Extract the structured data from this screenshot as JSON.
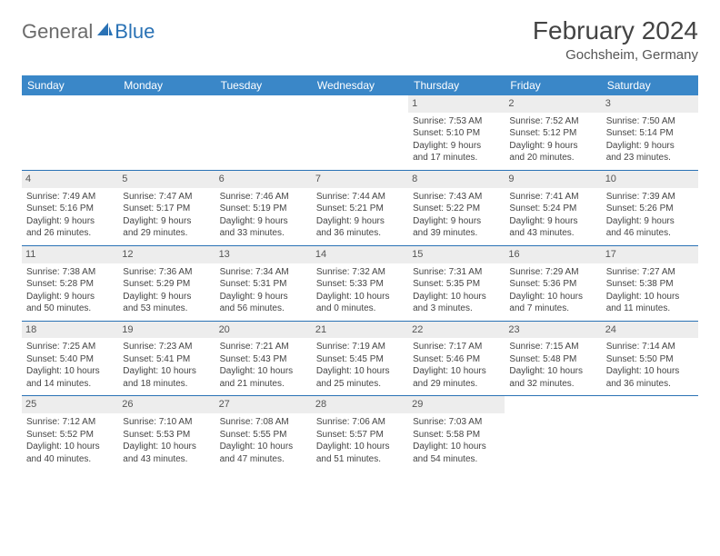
{
  "brand": {
    "part1": "General",
    "part2": "Blue"
  },
  "title": "February 2024",
  "location": "Gochsheim, Germany",
  "colors": {
    "header_bg": "#3a87c8",
    "rule": "#2a72b5",
    "daynum_bg": "#ededed",
    "text": "#444444",
    "brand_gray": "#6b6b6b",
    "brand_blue": "#2a72b5"
  },
  "days_of_week": [
    "Sunday",
    "Monday",
    "Tuesday",
    "Wednesday",
    "Thursday",
    "Friday",
    "Saturday"
  ],
  "weeks": [
    [
      null,
      null,
      null,
      null,
      {
        "n": "1",
        "sr": "7:53 AM",
        "ss": "5:10 PM",
        "dl": "9 hours and 17 minutes."
      },
      {
        "n": "2",
        "sr": "7:52 AM",
        "ss": "5:12 PM",
        "dl": "9 hours and 20 minutes."
      },
      {
        "n": "3",
        "sr": "7:50 AM",
        "ss": "5:14 PM",
        "dl": "9 hours and 23 minutes."
      }
    ],
    [
      {
        "n": "4",
        "sr": "7:49 AM",
        "ss": "5:16 PM",
        "dl": "9 hours and 26 minutes."
      },
      {
        "n": "5",
        "sr": "7:47 AM",
        "ss": "5:17 PM",
        "dl": "9 hours and 29 minutes."
      },
      {
        "n": "6",
        "sr": "7:46 AM",
        "ss": "5:19 PM",
        "dl": "9 hours and 33 minutes."
      },
      {
        "n": "7",
        "sr": "7:44 AM",
        "ss": "5:21 PM",
        "dl": "9 hours and 36 minutes."
      },
      {
        "n": "8",
        "sr": "7:43 AM",
        "ss": "5:22 PM",
        "dl": "9 hours and 39 minutes."
      },
      {
        "n": "9",
        "sr": "7:41 AM",
        "ss": "5:24 PM",
        "dl": "9 hours and 43 minutes."
      },
      {
        "n": "10",
        "sr": "7:39 AM",
        "ss": "5:26 PM",
        "dl": "9 hours and 46 minutes."
      }
    ],
    [
      {
        "n": "11",
        "sr": "7:38 AM",
        "ss": "5:28 PM",
        "dl": "9 hours and 50 minutes."
      },
      {
        "n": "12",
        "sr": "7:36 AM",
        "ss": "5:29 PM",
        "dl": "9 hours and 53 minutes."
      },
      {
        "n": "13",
        "sr": "7:34 AM",
        "ss": "5:31 PM",
        "dl": "9 hours and 56 minutes."
      },
      {
        "n": "14",
        "sr": "7:32 AM",
        "ss": "5:33 PM",
        "dl": "10 hours and 0 minutes."
      },
      {
        "n": "15",
        "sr": "7:31 AM",
        "ss": "5:35 PM",
        "dl": "10 hours and 3 minutes."
      },
      {
        "n": "16",
        "sr": "7:29 AM",
        "ss": "5:36 PM",
        "dl": "10 hours and 7 minutes."
      },
      {
        "n": "17",
        "sr": "7:27 AM",
        "ss": "5:38 PM",
        "dl": "10 hours and 11 minutes."
      }
    ],
    [
      {
        "n": "18",
        "sr": "7:25 AM",
        "ss": "5:40 PM",
        "dl": "10 hours and 14 minutes."
      },
      {
        "n": "19",
        "sr": "7:23 AM",
        "ss": "5:41 PM",
        "dl": "10 hours and 18 minutes."
      },
      {
        "n": "20",
        "sr": "7:21 AM",
        "ss": "5:43 PM",
        "dl": "10 hours and 21 minutes."
      },
      {
        "n": "21",
        "sr": "7:19 AM",
        "ss": "5:45 PM",
        "dl": "10 hours and 25 minutes."
      },
      {
        "n": "22",
        "sr": "7:17 AM",
        "ss": "5:46 PM",
        "dl": "10 hours and 29 minutes."
      },
      {
        "n": "23",
        "sr": "7:15 AM",
        "ss": "5:48 PM",
        "dl": "10 hours and 32 minutes."
      },
      {
        "n": "24",
        "sr": "7:14 AM",
        "ss": "5:50 PM",
        "dl": "10 hours and 36 minutes."
      }
    ],
    [
      {
        "n": "25",
        "sr": "7:12 AM",
        "ss": "5:52 PM",
        "dl": "10 hours and 40 minutes."
      },
      {
        "n": "26",
        "sr": "7:10 AM",
        "ss": "5:53 PM",
        "dl": "10 hours and 43 minutes."
      },
      {
        "n": "27",
        "sr": "7:08 AM",
        "ss": "5:55 PM",
        "dl": "10 hours and 47 minutes."
      },
      {
        "n": "28",
        "sr": "7:06 AM",
        "ss": "5:57 PM",
        "dl": "10 hours and 51 minutes."
      },
      {
        "n": "29",
        "sr": "7:03 AM",
        "ss": "5:58 PM",
        "dl": "10 hours and 54 minutes."
      },
      null,
      null
    ]
  ],
  "labels": {
    "sunrise": "Sunrise:",
    "sunset": "Sunset:",
    "daylight": "Daylight:"
  }
}
